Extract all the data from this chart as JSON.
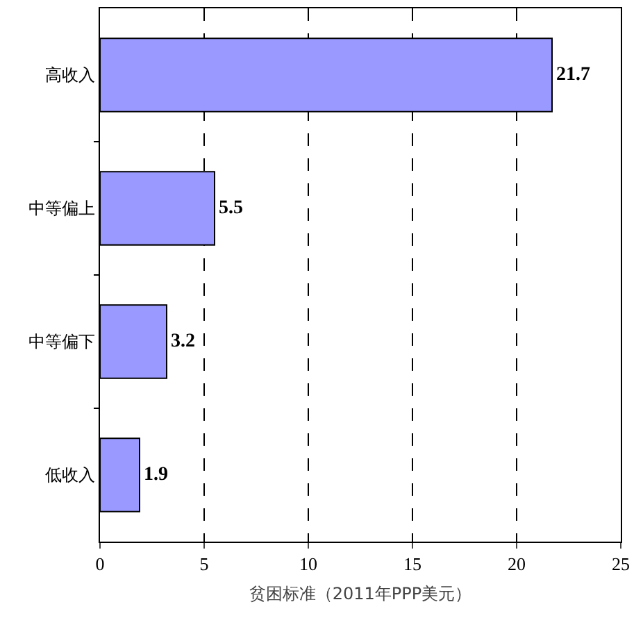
{
  "chart_data": {
    "type": "bar",
    "orientation": "horizontal",
    "xlabel": "贫困标准（2011年PPP美元）",
    "categories": [
      "高收入",
      "中等偏上",
      "中等偏下",
      "低收入"
    ],
    "values": [
      21.7,
      5.5,
      3.2,
      1.9
    ],
    "color": "#9999ff",
    "xlim": [
      0,
      25
    ],
    "xticks": [
      0,
      5,
      10,
      15,
      20,
      25
    ],
    "grid": "x",
    "data_labels": true
  }
}
